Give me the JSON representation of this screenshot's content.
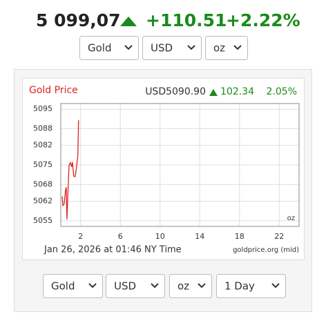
{
  "header": {
    "price": "5 099,07",
    "change": "+110.51",
    "percent": "+2.22%"
  },
  "top_selects": [
    "Gold",
    "USD",
    "oz"
  ],
  "chart_data": {
    "type": "line",
    "title": "Gold Price",
    "quote": "USD5090.90",
    "quote_change": "102.34",
    "quote_percent": "2.05%",
    "unit_note": "oz",
    "timestamp": "Jan 26, 2026 at 01:46 NY Time",
    "source": "goldprice.org (mid)",
    "x": [
      0.14,
      0.21,
      0.34,
      0.48,
      0.55,
      0.62,
      0.69,
      0.83,
      0.97,
      1.1,
      1.17,
      1.31,
      1.45,
      1.59,
      1.72,
      1.79
    ],
    "series": [
      {
        "name": "Gold Price",
        "color": "#e02020",
        "values": [
          5063.7,
          5060.5,
          5061,
          5066,
          5067,
          5055.5,
          5062.4,
          5074.8,
          5075.8,
          5074.3,
          5076,
          5071,
          5070.8,
          5074.3,
          5078.5,
          5091
        ]
      }
    ],
    "xlim": [
      0,
      24
    ],
    "xticks": [
      2,
      6,
      10,
      14,
      18,
      22
    ],
    "ylim": [
      5053,
      5097
    ],
    "yticks": [
      5055,
      5062,
      5068,
      5075,
      5082,
      5088,
      5095
    ],
    "grid": true
  },
  "bottom_selects": [
    "Gold",
    "USD",
    "oz",
    "1 Day"
  ]
}
